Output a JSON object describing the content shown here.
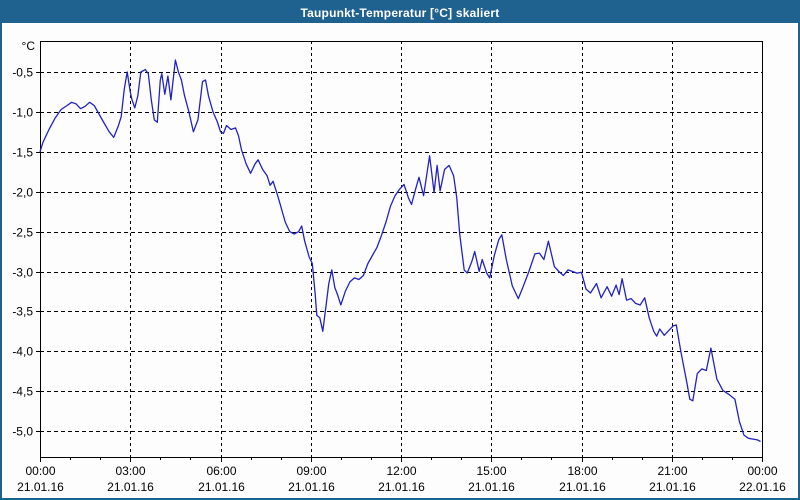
{
  "window": {
    "title": "Taupunkt-Temperatur [°C] skaliert"
  },
  "colors": {
    "titlebar": "#1f618f",
    "window_border": "#1f618f",
    "plot_background": "#fdfdfd",
    "line": "#2222c4",
    "grid": "#000000",
    "text": "#000000"
  },
  "chart_data": {
    "type": "line",
    "title": "Taupunkt-Temperatur [°C] skaliert",
    "unit_label": "°C",
    "xlabel": "",
    "ylabel": "°C",
    "ylim": [
      -5.35,
      -0.1
    ],
    "xlim_hours": [
      0,
      24
    ],
    "grid": true,
    "legend": false,
    "y_ticks": [
      {
        "value": -0.5,
        "label": "-0,5"
      },
      {
        "value": -1.0,
        "label": "-1,0"
      },
      {
        "value": -1.5,
        "label": "-1,5"
      },
      {
        "value": -2.0,
        "label": "-2,0"
      },
      {
        "value": -2.5,
        "label": "-2,5"
      },
      {
        "value": -3.0,
        "label": "-3,0"
      },
      {
        "value": -3.5,
        "label": "-3,5"
      },
      {
        "value": -4.0,
        "label": "-4,0"
      },
      {
        "value": -4.5,
        "label": "-4,5"
      },
      {
        "value": -5.0,
        "label": "-5,0"
      }
    ],
    "x_ticks": [
      {
        "hour": 0,
        "time": "00:00",
        "date": "21.01.16"
      },
      {
        "hour": 3,
        "time": "03:00",
        "date": "21.01.16"
      },
      {
        "hour": 6,
        "time": "06:00",
        "date": "21.01.16"
      },
      {
        "hour": 9,
        "time": "09:00",
        "date": "21.01.16"
      },
      {
        "hour": 12,
        "time": "12:00",
        "date": "21.01.16"
      },
      {
        "hour": 15,
        "time": "15:00",
        "date": "21.01.16"
      },
      {
        "hour": 18,
        "time": "18:00",
        "date": "21.01.16"
      },
      {
        "hour": 21,
        "time": "21:00",
        "date": "21.01.16"
      },
      {
        "hour": 24,
        "time": "00:00",
        "date": "22.01.16"
      }
    ],
    "x_minor_tick_every_hours": 1,
    "series": [
      {
        "name": "Taupunkt-Temperatur",
        "color": "#2222c4",
        "points": [
          [
            0,
            -1.5
          ],
          [
            0.1,
            -1.38
          ],
          [
            0.3,
            -1.22
          ],
          [
            0.5,
            -1.08
          ],
          [
            0.7,
            -0.97
          ],
          [
            0.9,
            -0.92
          ],
          [
            1.05,
            -0.88
          ],
          [
            1.2,
            -0.9
          ],
          [
            1.35,
            -0.96
          ],
          [
            1.5,
            -0.93
          ],
          [
            1.65,
            -0.88
          ],
          [
            1.8,
            -0.92
          ],
          [
            1.95,
            -1.02
          ],
          [
            2.1,
            -1.12
          ],
          [
            2.3,
            -1.25
          ],
          [
            2.45,
            -1.32
          ],
          [
            2.6,
            -1.18
          ],
          [
            2.7,
            -1.06
          ],
          [
            2.8,
            -0.72
          ],
          [
            2.9,
            -0.5
          ],
          [
            3.0,
            -0.75
          ],
          [
            3.05,
            -0.84
          ],
          [
            3.15,
            -0.95
          ],
          [
            3.25,
            -0.8
          ],
          [
            3.35,
            -0.5
          ],
          [
            3.5,
            -0.47
          ],
          [
            3.6,
            -0.52
          ],
          [
            3.7,
            -0.85
          ],
          [
            3.8,
            -1.1
          ],
          [
            3.9,
            -1.13
          ],
          [
            4.0,
            -0.6
          ],
          [
            4.05,
            -0.52
          ],
          [
            4.15,
            -0.78
          ],
          [
            4.25,
            -0.55
          ],
          [
            4.35,
            -0.85
          ],
          [
            4.5,
            -0.35
          ],
          [
            4.6,
            -0.5
          ],
          [
            4.7,
            -0.6
          ],
          [
            4.8,
            -0.79
          ],
          [
            4.95,
            -1.0
          ],
          [
            5.1,
            -1.25
          ],
          [
            5.25,
            -1.1
          ],
          [
            5.4,
            -0.62
          ],
          [
            5.5,
            -0.6
          ],
          [
            5.6,
            -0.8
          ],
          [
            5.75,
            -1.0
          ],
          [
            5.9,
            -1.13
          ],
          [
            6.0,
            -1.25
          ],
          [
            6.1,
            -1.27
          ],
          [
            6.2,
            -1.17
          ],
          [
            6.35,
            -1.22
          ],
          [
            6.5,
            -1.2
          ],
          [
            6.6,
            -1.3
          ],
          [
            6.7,
            -1.48
          ],
          [
            6.85,
            -1.65
          ],
          [
            7.0,
            -1.77
          ],
          [
            7.15,
            -1.65
          ],
          [
            7.25,
            -1.6
          ],
          [
            7.4,
            -1.72
          ],
          [
            7.55,
            -1.8
          ],
          [
            7.65,
            -1.92
          ],
          [
            7.75,
            -1.87
          ],
          [
            7.9,
            -2.05
          ],
          [
            8.0,
            -2.18
          ],
          [
            8.15,
            -2.38
          ],
          [
            8.3,
            -2.5
          ],
          [
            8.45,
            -2.53
          ],
          [
            8.6,
            -2.5
          ],
          [
            8.7,
            -2.43
          ],
          [
            8.8,
            -2.62
          ],
          [
            8.95,
            -2.82
          ],
          [
            9.05,
            -2.9
          ],
          [
            9.15,
            -3.3
          ],
          [
            9.2,
            -3.55
          ],
          [
            9.3,
            -3.58
          ],
          [
            9.4,
            -3.75
          ],
          [
            9.5,
            -3.45
          ],
          [
            9.6,
            -3.15
          ],
          [
            9.7,
            -2.98
          ],
          [
            9.8,
            -3.2
          ],
          [
            9.9,
            -3.3
          ],
          [
            10.0,
            -3.42
          ],
          [
            10.15,
            -3.25
          ],
          [
            10.3,
            -3.13
          ],
          [
            10.45,
            -3.08
          ],
          [
            10.6,
            -3.1
          ],
          [
            10.75,
            -3.05
          ],
          [
            10.9,
            -2.9
          ],
          [
            11.05,
            -2.8
          ],
          [
            11.2,
            -2.7
          ],
          [
            11.35,
            -2.55
          ],
          [
            11.5,
            -2.38
          ],
          [
            11.65,
            -2.18
          ],
          [
            11.8,
            -2.05
          ],
          [
            11.95,
            -1.97
          ],
          [
            12.1,
            -1.91
          ],
          [
            12.25,
            -2.08
          ],
          [
            12.35,
            -2.16
          ],
          [
            12.5,
            -1.95
          ],
          [
            12.6,
            -1.82
          ],
          [
            12.75,
            -2.05
          ],
          [
            12.95,
            -1.55
          ],
          [
            13.1,
            -2.01
          ],
          [
            13.2,
            -1.67
          ],
          [
            13.3,
            -1.99
          ],
          [
            13.45,
            -1.72
          ],
          [
            13.6,
            -1.67
          ],
          [
            13.75,
            -1.8
          ],
          [
            13.85,
            -2.07
          ],
          [
            13.95,
            -2.53
          ],
          [
            14.1,
            -2.98
          ],
          [
            14.2,
            -3.02
          ],
          [
            14.35,
            -2.88
          ],
          [
            14.45,
            -2.75
          ],
          [
            14.6,
            -3.0
          ],
          [
            14.7,
            -2.85
          ],
          [
            14.85,
            -3.02
          ],
          [
            14.95,
            -3.08
          ],
          [
            15.1,
            -2.8
          ],
          [
            15.25,
            -2.6
          ],
          [
            15.35,
            -2.54
          ],
          [
            15.5,
            -2.85
          ],
          [
            15.7,
            -3.18
          ],
          [
            15.9,
            -3.34
          ],
          [
            16.05,
            -3.2
          ],
          [
            16.25,
            -3.0
          ],
          [
            16.45,
            -2.78
          ],
          [
            16.6,
            -2.77
          ],
          [
            16.75,
            -2.85
          ],
          [
            16.9,
            -2.62
          ],
          [
            17.1,
            -2.94
          ],
          [
            17.25,
            -3.0
          ],
          [
            17.4,
            -3.05
          ],
          [
            17.55,
            -2.98
          ],
          [
            17.7,
            -3.0
          ],
          [
            17.85,
            -3.02
          ],
          [
            18.0,
            -3.01
          ],
          [
            18.15,
            -3.22
          ],
          [
            18.3,
            -3.27
          ],
          [
            18.5,
            -3.15
          ],
          [
            18.65,
            -3.33
          ],
          [
            18.85,
            -3.19
          ],
          [
            19.0,
            -3.31
          ],
          [
            19.15,
            -3.17
          ],
          [
            19.25,
            -3.29
          ],
          [
            19.35,
            -3.09
          ],
          [
            19.5,
            -3.36
          ],
          [
            19.65,
            -3.34
          ],
          [
            19.8,
            -3.4
          ],
          [
            19.95,
            -3.42
          ],
          [
            20.1,
            -3.33
          ],
          [
            20.25,
            -3.58
          ],
          [
            20.4,
            -3.75
          ],
          [
            20.5,
            -3.81
          ],
          [
            20.6,
            -3.72
          ],
          [
            20.75,
            -3.8
          ],
          [
            20.9,
            -3.74
          ],
          [
            21.05,
            -3.68
          ],
          [
            21.15,
            -3.67
          ],
          [
            21.3,
            -4.0
          ],
          [
            21.5,
            -4.39
          ],
          [
            21.6,
            -4.6
          ],
          [
            21.7,
            -4.62
          ],
          [
            21.85,
            -4.28
          ],
          [
            22.0,
            -4.22
          ],
          [
            22.15,
            -4.24
          ],
          [
            22.3,
            -3.96
          ],
          [
            22.5,
            -4.35
          ],
          [
            22.7,
            -4.49
          ],
          [
            22.9,
            -4.54
          ],
          [
            23.1,
            -4.6
          ],
          [
            23.25,
            -4.88
          ],
          [
            23.4,
            -5.05
          ],
          [
            23.55,
            -5.09
          ],
          [
            23.7,
            -5.1
          ],
          [
            23.85,
            -5.11
          ],
          [
            23.95,
            -5.13
          ]
        ]
      }
    ]
  }
}
